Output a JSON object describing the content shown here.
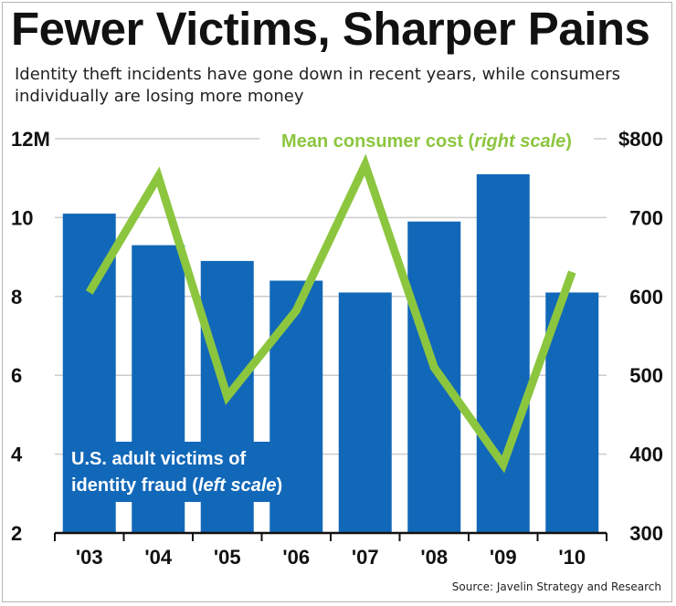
{
  "title": "Fewer Victims, Sharper Pains",
  "subtitle": "Identity theft incidents have gone down in recent years, while consumers individually are losing more money",
  "source": "Source: Javelin Strategy and Research",
  "colors": {
    "bars": "#1268b8",
    "line": "#8cc63f",
    "grid": "#cccccc",
    "text": "#111111"
  },
  "chart_data": {
    "type": "bar",
    "categories": [
      "'03",
      "'04",
      "'05",
      "'06",
      "'07",
      "'08",
      "'09",
      "'10"
    ],
    "series": [
      {
        "name": "U.S. adult victims of identity fraud (left scale)",
        "type": "bar",
        "axis": "left",
        "values": [
          10.1,
          9.3,
          8.9,
          8.4,
          8.1,
          9.9,
          11.1,
          8.1
        ]
      },
      {
        "name": "Mean consumer cost (right scale)",
        "type": "line",
        "axis": "right",
        "values": [
          605,
          752,
          473,
          582,
          767,
          510,
          387,
          631
        ]
      }
    ],
    "left_axis": {
      "ylim": [
        2,
        12
      ],
      "tick_labels": [
        "2",
        "4",
        "6",
        "8",
        "10",
        "12M"
      ]
    },
    "right_axis": {
      "ylim": [
        300,
        800
      ],
      "tick_labels": [
        "300",
        "400",
        "500",
        "600",
        "700",
        "$800"
      ]
    },
    "grid": true,
    "legend": [
      {
        "series": 1,
        "text": "Mean consumer cost (",
        "emphasis": "right scale",
        "suffix": ")",
        "placement": "top"
      },
      {
        "series": 0,
        "line1": "U.S. adult victims of",
        "line2_text": "identity fraud (",
        "emphasis": "left scale",
        "suffix": ")",
        "placement": "bottom-left"
      }
    ]
  }
}
